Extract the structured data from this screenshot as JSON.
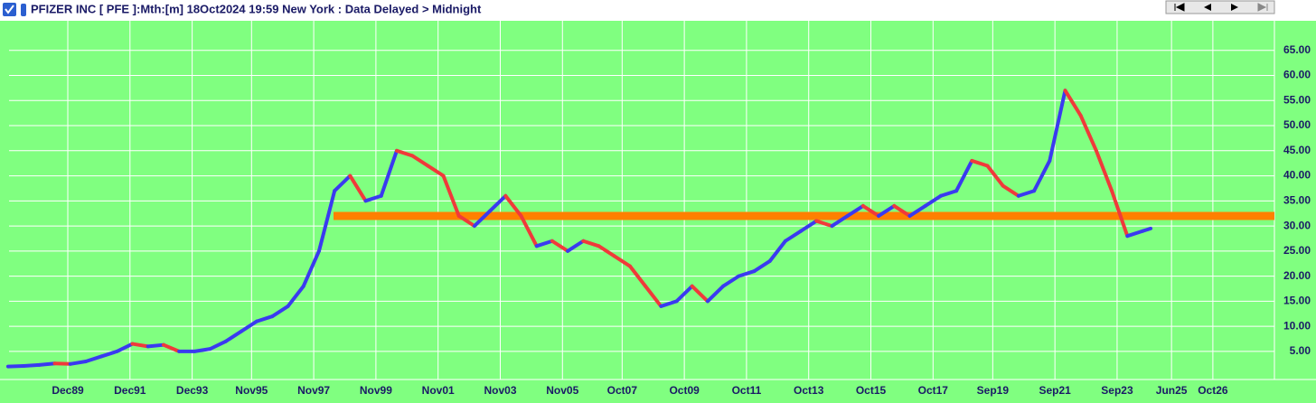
{
  "chart_data": {
    "type": "line",
    "title": "PFIZER INC [ PFE ]:Mth:[m]  18Oct2024 19:59 New York : Data Delayed > Midnight",
    "up_color": "#3a3af0",
    "down_color": "#f03a3a",
    "reference_line": {
      "value": 32,
      "color": "#ff8000"
    },
    "grid": true,
    "xlim": [
      1988.03,
      2028.73
    ],
    "ylim": [
      -0.6,
      70
    ],
    "xticks": [
      {
        "value": 1989.92,
        "label": "Dec89"
      },
      {
        "value": 1991.92,
        "label": "Dec91"
      },
      {
        "value": 1993.92,
        "label": "Dec93"
      },
      {
        "value": 1995.83,
        "label": "Nov95"
      },
      {
        "value": 1997.83,
        "label": "Nov97"
      },
      {
        "value": 1999.83,
        "label": "Nov99"
      },
      {
        "value": 2001.83,
        "label": "Nov01"
      },
      {
        "value": 2003.83,
        "label": "Nov03"
      },
      {
        "value": 2005.83,
        "label": "Nov05"
      },
      {
        "value": 2007.75,
        "label": "Oct07"
      },
      {
        "value": 2009.75,
        "label": "Oct09"
      },
      {
        "value": 2011.75,
        "label": "Oct11"
      },
      {
        "value": 2013.75,
        "label": "Oct13"
      },
      {
        "value": 2015.75,
        "label": "Oct15"
      },
      {
        "value": 2017.75,
        "label": "Oct17"
      },
      {
        "value": 2019.67,
        "label": "Sep19"
      },
      {
        "value": 2021.67,
        "label": "Sep21"
      },
      {
        "value": 2023.67,
        "label": "Sep23"
      },
      {
        "value": 2025.42,
        "label": "Jun25"
      },
      {
        "value": 2026.75,
        "label": "Oct26"
      }
    ],
    "yticks": [
      {
        "value": 5,
        "label": "5.00"
      },
      {
        "value": 10,
        "label": "10.00"
      },
      {
        "value": 15,
        "label": "15.00"
      },
      {
        "value": 20,
        "label": "20.00"
      },
      {
        "value": 25,
        "label": "25.00"
      },
      {
        "value": 30,
        "label": "30.00"
      },
      {
        "value": 35,
        "label": "35.00"
      },
      {
        "value": 40,
        "label": "40.00"
      },
      {
        "value": 45,
        "label": "45.00"
      },
      {
        "value": 50,
        "label": "50.00"
      },
      {
        "value": 55,
        "label": "55.00"
      },
      {
        "value": 60,
        "label": "60.00"
      },
      {
        "value": 65,
        "label": "65.00"
      }
    ],
    "x": [
      1988.0,
      1988.5,
      1989.0,
      1989.5,
      1990.0,
      1990.5,
      1991.0,
      1991.5,
      1992.0,
      1992.5,
      1993.0,
      1993.5,
      1994.0,
      1994.5,
      1995.0,
      1995.5,
      1996.0,
      1996.5,
      1997.0,
      1997.5,
      1998.0,
      1998.5,
      1999.0,
      1999.5,
      2000.0,
      2000.5,
      2001.0,
      2001.5,
      2002.0,
      2002.5,
      2003.0,
      2003.5,
      2004.0,
      2004.5,
      2005.0,
      2005.5,
      2006.0,
      2006.5,
      2007.0,
      2007.5,
      2008.0,
      2008.5,
      2009.0,
      2009.5,
      2010.0,
      2010.5,
      2011.0,
      2011.5,
      2012.0,
      2012.5,
      2013.0,
      2013.5,
      2014.0,
      2014.5,
      2015.0,
      2015.5,
      2016.0,
      2016.5,
      2017.0,
      2017.5,
      2018.0,
      2018.5,
      2019.0,
      2019.5,
      2020.0,
      2020.5,
      2021.0,
      2021.5,
      2022.0,
      2022.5,
      2023.0,
      2023.5,
      2024.0,
      2024.5,
      2024.75
    ],
    "values": [
      2.0,
      2.1,
      2.3,
      2.6,
      2.5,
      3.0,
      4.0,
      5.0,
      6.5,
      6.0,
      6.3,
      5.0,
      5.0,
      5.5,
      7.0,
      9.0,
      11.0,
      12.0,
      14.0,
      18.0,
      25,
      37,
      40,
      35,
      36,
      45,
      44,
      42,
      40,
      32,
      30,
      33,
      36,
      32,
      26,
      27,
      25,
      27,
      26,
      24,
      22,
      18,
      14,
      15,
      18,
      15,
      18,
      20,
      21,
      23,
      27,
      29,
      31,
      30,
      32,
      34,
      32,
      34,
      32,
      34,
      36,
      37,
      43,
      42,
      38,
      36,
      37,
      43,
      57,
      52,
      45,
      37,
      28,
      29,
      29.5
    ]
  }
}
